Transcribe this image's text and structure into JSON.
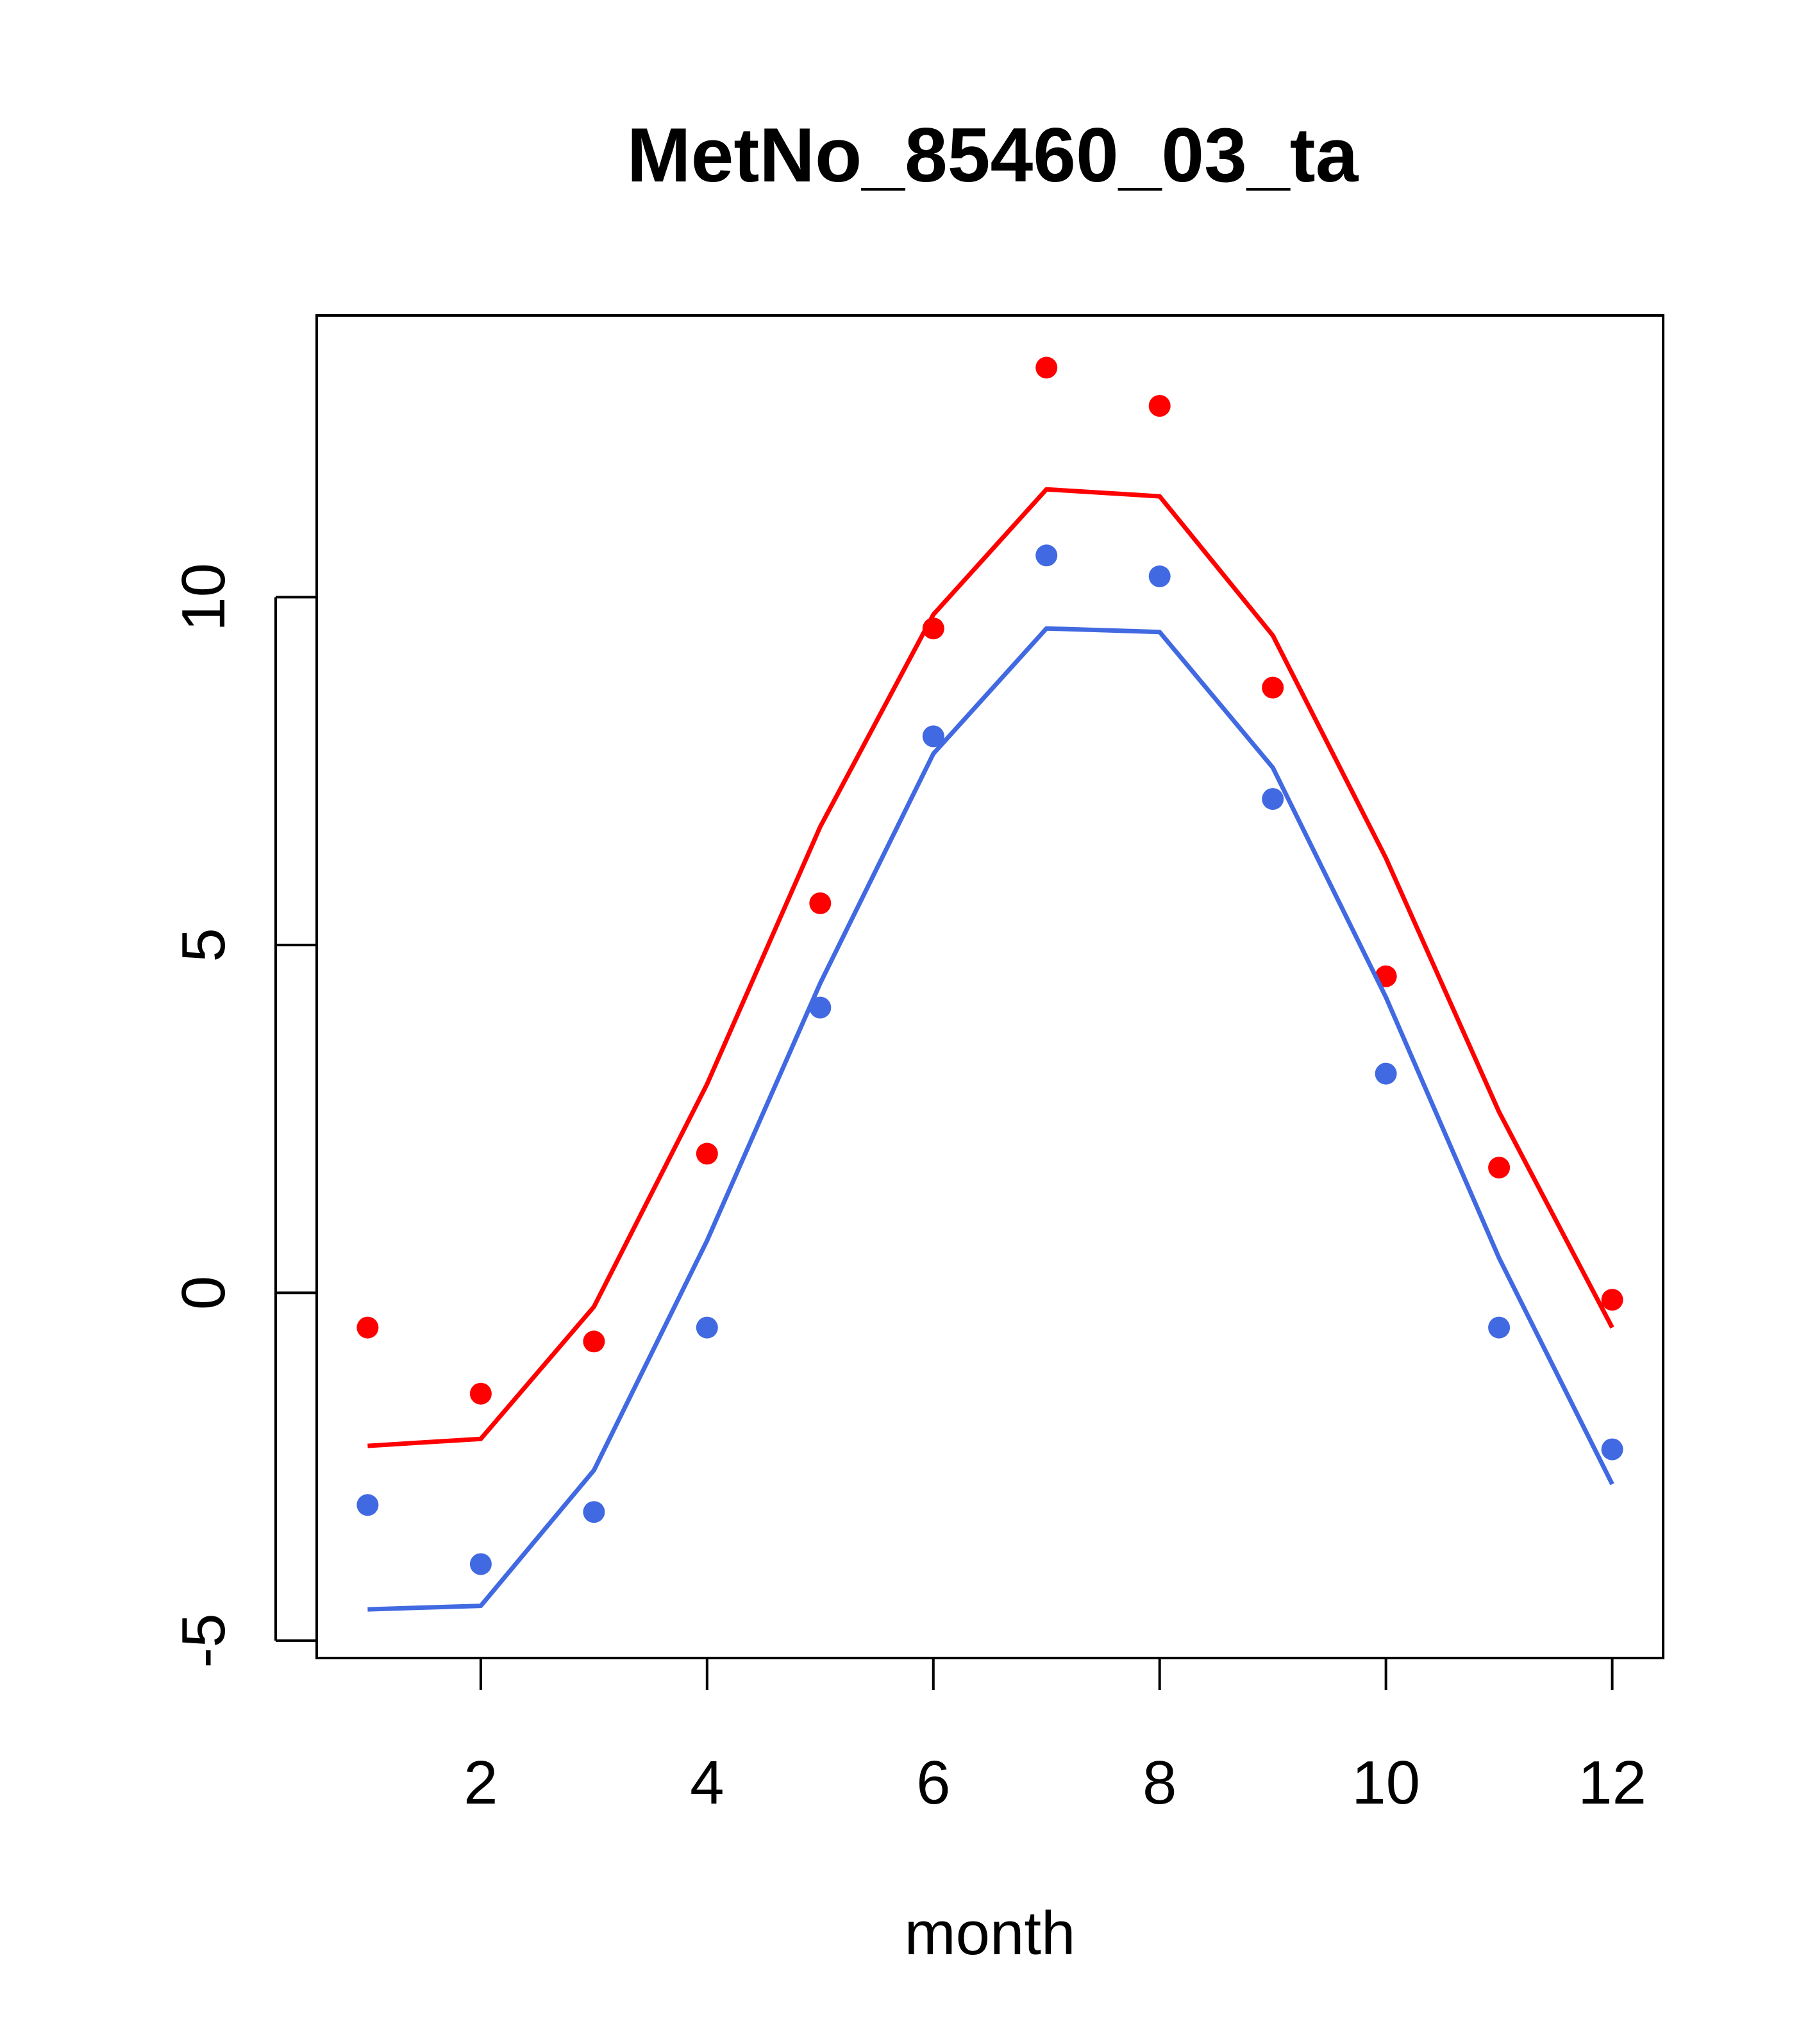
{
  "chart_data": {
    "type": "line",
    "title": "MetNo_85460_03_ta",
    "xlabel": "month",
    "ylabel": "",
    "xlim": [
      0.55,
      12.45
    ],
    "ylim": [
      -5.25,
      14.05
    ],
    "x_ticks": [
      2,
      4,
      6,
      8,
      10,
      12
    ],
    "x_tick_labels": [
      "2",
      "4",
      "6",
      "8",
      "10",
      "12"
    ],
    "y_ticks": [
      -5,
      0,
      5,
      10
    ],
    "y_tick_labels": [
      "-5",
      "0",
      "5",
      "10"
    ],
    "grid": false,
    "colors": {
      "red": "#ff0000",
      "blue": "#4169e1"
    },
    "series": [
      {
        "color": "red",
        "style": "points",
        "x": [
          1,
          2,
          3,
          4,
          5,
          6,
          7,
          8,
          9,
          10,
          11,
          12
        ],
        "values": [
          -0.5,
          -1.45,
          -0.7,
          2.0,
          5.6,
          9.55,
          13.3,
          12.75,
          8.7,
          4.55,
          1.8,
          -0.1
        ]
      },
      {
        "color": "red",
        "style": "line",
        "x": [
          1,
          2,
          3,
          4,
          5,
          6,
          7,
          8,
          9,
          10,
          11,
          12
        ],
        "values": [
          -2.2,
          -2.1,
          -0.2,
          3.0,
          6.7,
          9.75,
          11.55,
          11.45,
          9.45,
          6.25,
          2.6,
          -0.5
        ]
      },
      {
        "color": "blue",
        "style": "points",
        "x": [
          1,
          2,
          3,
          4,
          5,
          6,
          7,
          8,
          9,
          10,
          11,
          12
        ],
        "values": [
          -3.05,
          -3.9,
          -3.15,
          -0.5,
          4.1,
          8.0,
          10.6,
          10.3,
          7.1,
          3.15,
          -0.5,
          -2.25
        ]
      },
      {
        "color": "blue",
        "style": "line",
        "x": [
          1,
          2,
          3,
          4,
          5,
          6,
          7,
          8,
          9,
          10,
          11,
          12
        ],
        "values": [
          -4.55,
          -4.5,
          -2.55,
          0.75,
          4.45,
          7.75,
          9.55,
          9.5,
          7.55,
          4.25,
          0.5,
          -2.75
        ]
      }
    ]
  }
}
